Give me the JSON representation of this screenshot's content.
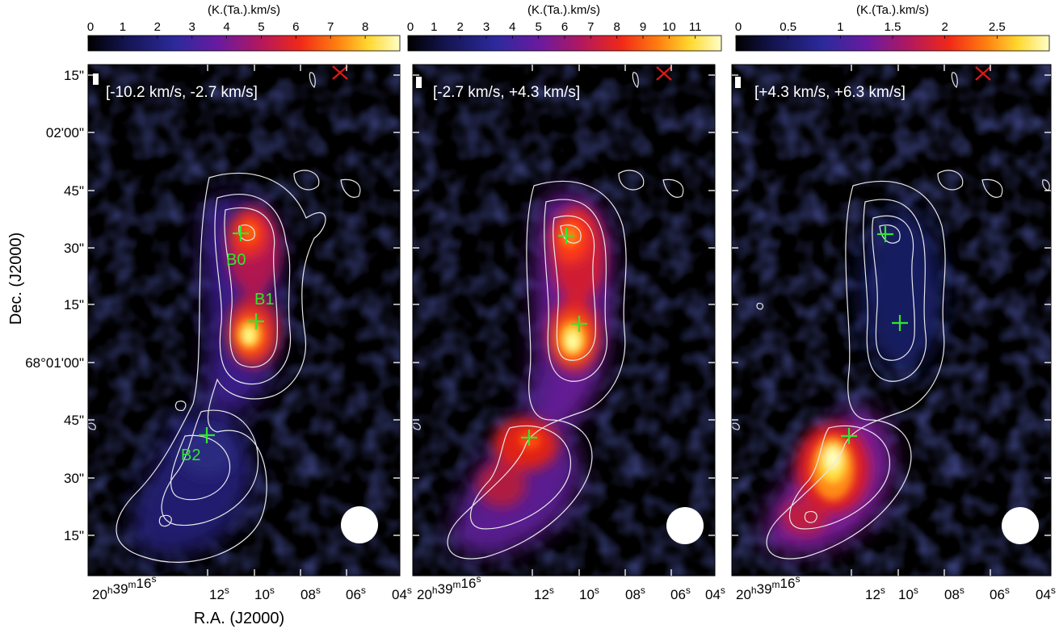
{
  "figure": {
    "ylabel": "Dec. (J2000)",
    "xlabel": "R.A. (J2000)",
    "y_ticks": [
      "15\"",
      "02'00\"",
      "45\"",
      "30\"",
      "15\"",
      "68°01'00\"",
      "45\"",
      "30\"",
      "15\""
    ],
    "colors": {
      "cmap": [
        "#000000",
        "#1a1a60",
        "#3a2aa0",
        "#7a1a9a",
        "#c0183a",
        "#ff3a10",
        "#ff9a10",
        "#ffe840",
        "#ffffc0"
      ],
      "contour": "#e8e8e8",
      "marker": "#2ee82e",
      "source_label": "#2ee82e",
      "reference_x": "#e01818",
      "beam": "#ffffff"
    }
  },
  "chart_data": [
    {
      "type": "heatmap",
      "colorbar": {
        "label": "(K.(Ta.).km/s)",
        "ticks": [
          "0",
          "1",
          "2",
          "3",
          "4",
          "5",
          "6",
          "7",
          "8"
        ],
        "range": [
          0,
          9
        ]
      },
      "velocity_range": "[-10.2 km/s, -2.7 km/s]",
      "ra_ticks": [
        {
          "h": "20",
          "hu": "h",
          "m": "39",
          "mu": "m",
          "s": "16",
          "su": "s"
        },
        {
          "s": "12",
          "su": "s"
        },
        {
          "s": "10",
          "su": "s"
        },
        {
          "s": "08",
          "su": "s"
        },
        {
          "s": "06",
          "su": "s"
        },
        {
          "s": "04",
          "su": "s"
        }
      ],
      "sources": [
        {
          "name": "B0",
          "offset": [
            0,
            0
          ]
        },
        {
          "name": "B1",
          "offset": [
            0,
            0
          ]
        },
        {
          "name": "B2",
          "offset": [
            0,
            0
          ]
        }
      ],
      "beam": "circle",
      "grid": false
    },
    {
      "type": "heatmap",
      "colorbar": {
        "label": "(K.(Ta.).km/s)",
        "ticks": [
          "0",
          "1",
          "2",
          "3",
          "4",
          "5",
          "6",
          "7",
          "8",
          "9",
          "10",
          "11"
        ],
        "range": [
          0,
          12
        ]
      },
      "velocity_range": "[-2.7 km/s, +4.3 km/s]",
      "ra_ticks": [
        {
          "h": "20",
          "hu": "h",
          "m": "39",
          "mu": "m",
          "s": "16",
          "su": "s"
        },
        {
          "s": "12",
          "su": "s"
        },
        {
          "s": "10",
          "su": "s"
        },
        {
          "s": "08",
          "su": "s"
        },
        {
          "s": "06",
          "su": "s"
        },
        {
          "s": "04",
          "su": "s"
        }
      ],
      "beam": "circle",
      "grid": false
    },
    {
      "type": "heatmap",
      "colorbar": {
        "label": "(K.(Ta.).km/s)",
        "ticks": [
          "0",
          "0.5",
          "1",
          "1.5",
          "2",
          "2.5"
        ],
        "range": [
          0,
          3
        ]
      },
      "velocity_range": "[+4.3 km/s, +6.3 km/s]",
      "ra_ticks": [
        {
          "h": "20",
          "hu": "h",
          "m": "39",
          "mu": "m",
          "s": "16",
          "su": "s"
        },
        {
          "s": "12",
          "su": "s"
        },
        {
          "s": "10",
          "su": "s"
        },
        {
          "s": "08",
          "su": "s"
        },
        {
          "s": "06",
          "su": "s"
        },
        {
          "s": "04",
          "su": "s"
        }
      ],
      "beam": "circle",
      "grid": false
    }
  ]
}
